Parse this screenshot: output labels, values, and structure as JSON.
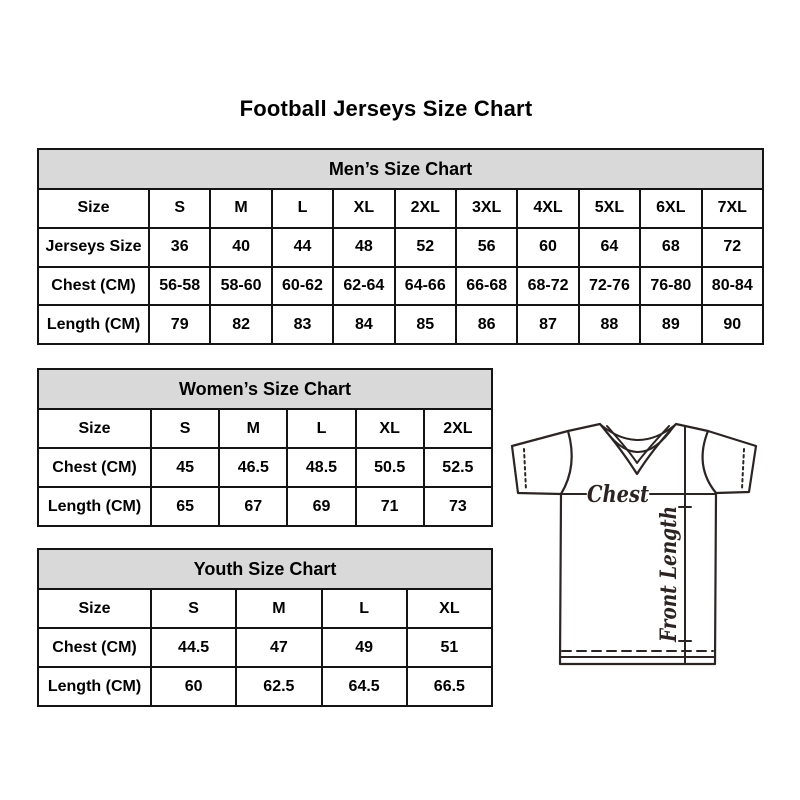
{
  "title": "Football Jerseys Size Chart",
  "colors": {
    "table_header_bg": "#d9d9d9",
    "table_border": "#141414",
    "jersey_line": "#2b2422"
  },
  "chart_data": [
    {
      "type": "table",
      "title": "Men’s Size Chart",
      "rows": [
        [
          "Size",
          "S",
          "M",
          "L",
          "XL",
          "2XL",
          "3XL",
          "4XL",
          "5XL",
          "6XL",
          "7XL"
        ],
        [
          "Jerseys Size",
          "36",
          "40",
          "44",
          "48",
          "52",
          "56",
          "60",
          "64",
          "68",
          "72"
        ],
        [
          "Chest (CM)",
          "56-58",
          "58-60",
          "60-62",
          "62-64",
          "64-66",
          "66-68",
          "68-72",
          "72-76",
          "76-80",
          "80-84"
        ],
        [
          "Length (CM)",
          "79",
          "82",
          "83",
          "84",
          "85",
          "86",
          "87",
          "88",
          "89",
          "90"
        ]
      ]
    },
    {
      "type": "table",
      "title": "Women’s Size Chart",
      "rows": [
        [
          "Size",
          "S",
          "M",
          "L",
          "XL",
          "2XL"
        ],
        [
          "Chest (CM)",
          "45",
          "46.5",
          "48.5",
          "50.5",
          "52.5"
        ],
        [
          "Length (CM)",
          "65",
          "67",
          "69",
          "71",
          "73"
        ]
      ]
    },
    {
      "type": "table",
      "title": "Youth Size Chart",
      "rows": [
        [
          "Size",
          "S",
          "M",
          "L",
          "XL"
        ],
        [
          "Chest (CM)",
          "44.5",
          "47",
          "49",
          "51"
        ],
        [
          "Length (CM)",
          "60",
          "62.5",
          "64.5",
          "66.5"
        ]
      ]
    }
  ],
  "diagram": {
    "chest_label": "Chest",
    "front_length_label": "Front Length"
  }
}
